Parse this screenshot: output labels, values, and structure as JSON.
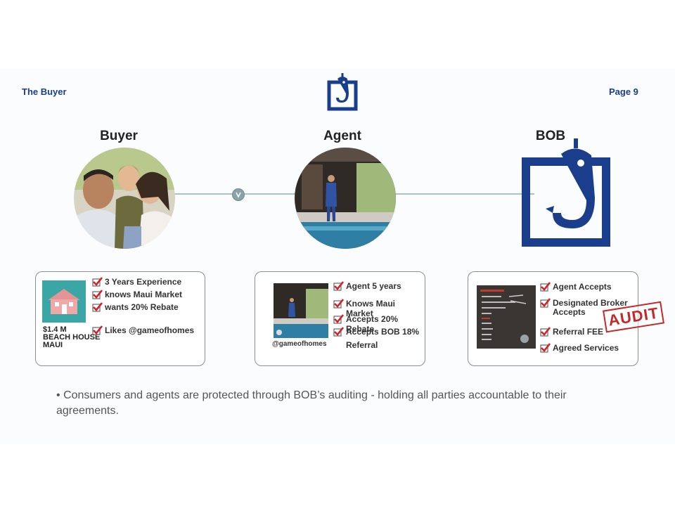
{
  "header": {
    "left_title": "The Buyer",
    "page_label": "Page 9"
  },
  "columns": {
    "buyer": {
      "title": "Buyer"
    },
    "agent": {
      "title": "Agent"
    },
    "bob": {
      "title": "BOB"
    }
  },
  "buyer_card": {
    "price": "$1.4 M",
    "property_type": "BEACH HOUSE",
    "location": "MAUI",
    "items": [
      "3 Years Experience",
      "knows Maui Market",
      "wants 20% Rebate",
      "Likes @gameofhomes"
    ]
  },
  "agent_card": {
    "handle": "@gameofhomes",
    "items": [
      "Agent 5 years",
      "Knows Maui Market",
      "Accepts 20% Rebate",
      "Accepts BOB 18%",
      "Referral"
    ]
  },
  "bob_card": {
    "items": [
      "Agent Accepts",
      "Designated Broker",
      "Accepts",
      "Referral FEE",
      "Agreed Services"
    ],
    "stamp": "AUDIT"
  },
  "caption": {
    "bullet": "•",
    "text": "Consumers and agents are protected through BOB’s auditing - holding all parties accountable to their agreements."
  },
  "colors": {
    "brand_blue": "#1a3e8c",
    "check_red": "#d2232a",
    "stamp_red": "#c62828"
  }
}
